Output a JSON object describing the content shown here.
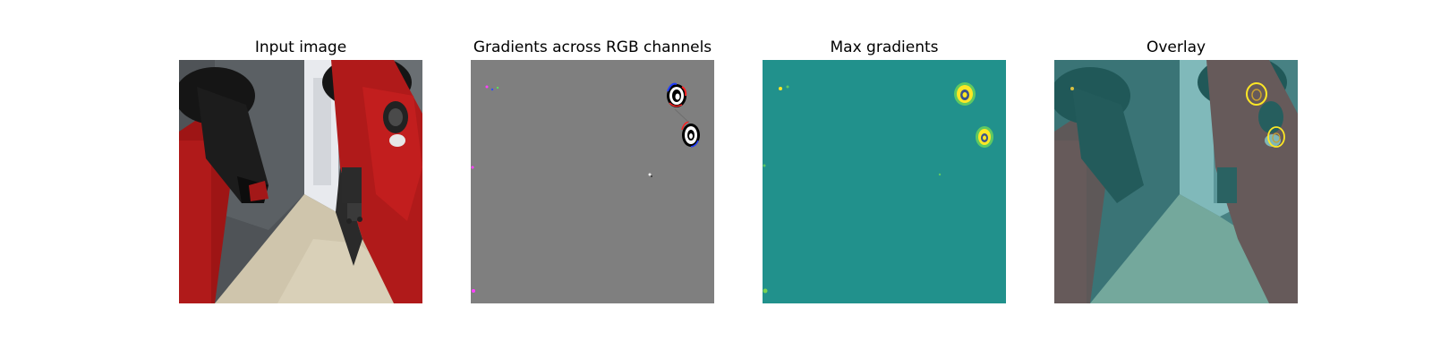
{
  "figure": {
    "panels": [
      {
        "title": "Input image"
      },
      {
        "title": "Gradients across RGB channels"
      },
      {
        "title": "Max gradients"
      },
      {
        "title": "Overlay"
      }
    ]
  },
  "colors": {
    "background": "#ffffff",
    "gradient_gray": "#7f7f7f",
    "viridis_teal": "#21918c",
    "robot_red": "#b01a1a",
    "robot_black": "#151515",
    "wall_white": "#e8eaee",
    "floor_beige": "#cfc5ac",
    "glass_dark": "#4f5357",
    "overlay_tint": "#2a8f8f",
    "viridis_yellow": "#fde725",
    "viridis_green": "#5ec962"
  }
}
